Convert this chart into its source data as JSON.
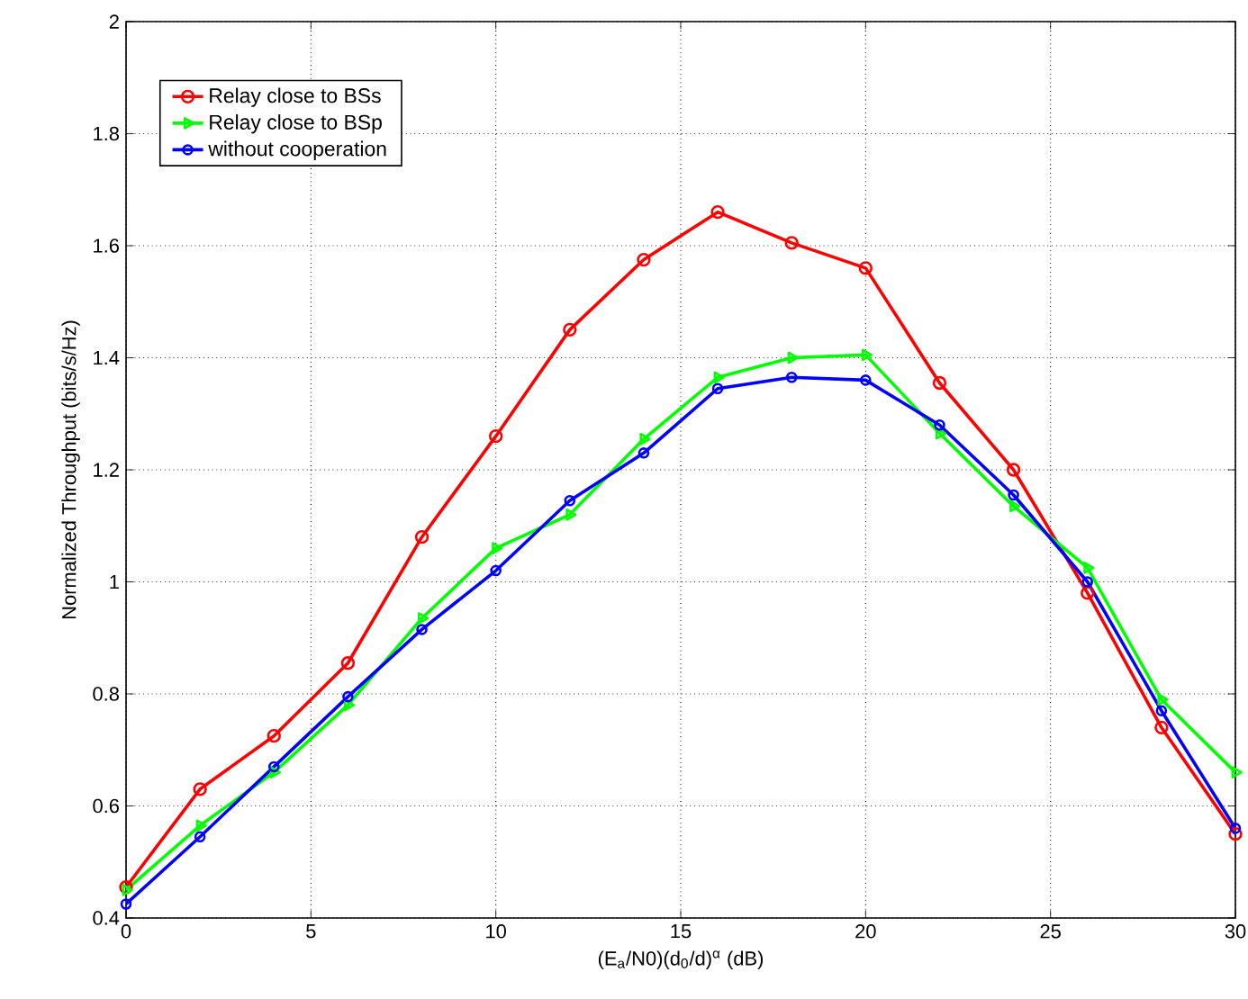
{
  "chart_data": {
    "type": "line",
    "xlabel": "(E$_{a}$/N0)(d$_{0}$/d)$^{α}$ (dB)",
    "ylabel": "Normalized Throughput (bits/s/Hz)",
    "x": [
      0,
      2,
      4,
      6,
      8,
      10,
      12,
      14,
      16,
      18,
      20,
      22,
      24,
      26,
      28,
      30
    ],
    "series": [
      {
        "name": "Relay close to BSs",
        "color": "#ff0000",
        "marker": "circle",
        "values": [
          0.455,
          0.63,
          0.725,
          0.855,
          1.08,
          1.26,
          1.45,
          1.575,
          1.66,
          1.605,
          1.56,
          1.355,
          1.2,
          0.98,
          0.74,
          0.55
        ]
      },
      {
        "name": "Relay close to BSp",
        "color": "#00ff00",
        "marker": "triangle",
        "values": [
          0.45,
          0.565,
          0.66,
          0.78,
          0.935,
          1.06,
          1.12,
          1.255,
          1.365,
          1.4,
          1.405,
          1.265,
          1.135,
          1.025,
          0.79,
          0.66
        ]
      },
      {
        "name": "without cooperation",
        "color": "#0000ff",
        "marker": "circle",
        "values": [
          0.425,
          0.545,
          0.67,
          0.795,
          0.915,
          1.02,
          1.145,
          1.23,
          1.345,
          1.365,
          1.36,
          1.28,
          1.155,
          1.0,
          0.77,
          0.56
        ]
      }
    ],
    "xlim": [
      0,
      30
    ],
    "ylim": [
      0.4,
      2
    ],
    "xticks": [
      0,
      5,
      10,
      15,
      20,
      25,
      30
    ],
    "yticks": [
      0.4,
      0.6,
      0.8,
      1,
      1.2,
      1.4,
      1.6,
      1.8,
      2
    ],
    "grid": true,
    "legend": "top left",
    "line_style": "solid"
  }
}
